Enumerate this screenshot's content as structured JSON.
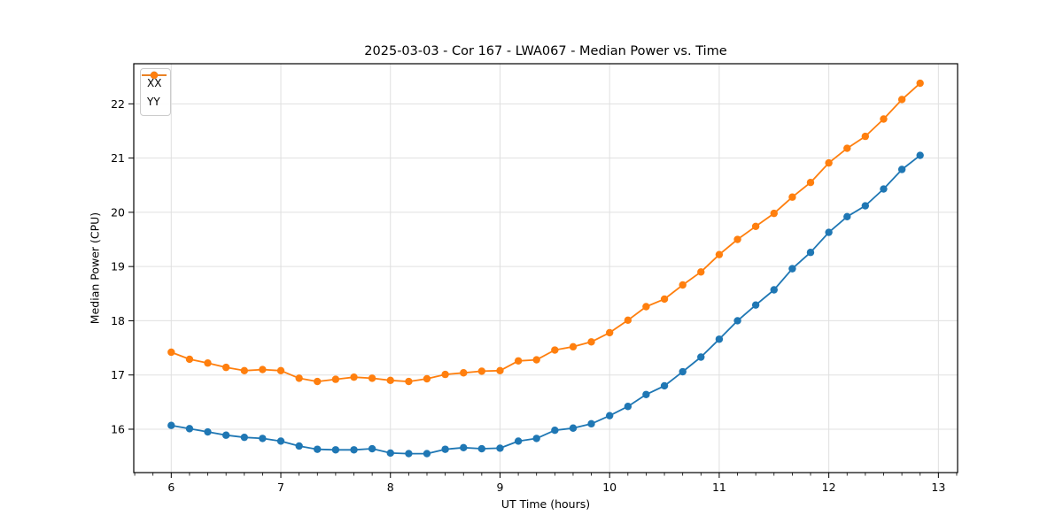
{
  "chart_data": {
    "type": "line",
    "title": "2025-03-03 - Cor 167 - LWA067 - Median Power vs. Time",
    "xlabel": "UT Time (hours)",
    "ylabel": "Median Power (CPU)",
    "xlim": [
      5.658,
      13.175
    ],
    "ylim": [
      15.2,
      22.74
    ],
    "xticks": [
      6,
      7,
      8,
      9,
      10,
      11,
      12,
      13
    ],
    "yticks": [
      16,
      17,
      18,
      19,
      20,
      21,
      22
    ],
    "x_minor_step": 0.166667,
    "grid": true,
    "legend_position": "upper-left",
    "x": [
      6.0,
      6.167,
      6.333,
      6.5,
      6.667,
      6.833,
      7.0,
      7.167,
      7.333,
      7.5,
      7.667,
      7.833,
      8.0,
      8.167,
      8.333,
      8.5,
      8.667,
      8.833,
      9.0,
      9.167,
      9.333,
      9.5,
      9.667,
      9.833,
      10.0,
      10.167,
      10.333,
      10.5,
      10.667,
      10.833,
      11.0,
      11.167,
      11.333,
      11.5,
      11.667,
      11.833,
      12.0,
      12.167,
      12.333,
      12.5,
      12.667,
      12.833
    ],
    "series": [
      {
        "name": "XX",
        "color": "#1f77b4",
        "values": [
          16.07,
          16.01,
          15.95,
          15.89,
          15.85,
          15.83,
          15.78,
          15.69,
          15.63,
          15.62,
          15.62,
          15.64,
          15.56,
          15.55,
          15.55,
          15.63,
          15.66,
          15.64,
          15.65,
          15.78,
          15.83,
          15.98,
          16.02,
          16.1,
          16.25,
          16.42,
          16.64,
          16.8,
          17.06,
          17.33,
          17.66,
          18.0,
          18.29,
          18.57,
          18.96,
          19.26,
          19.63,
          19.92,
          20.12,
          20.43,
          20.79,
          21.05
        ]
      },
      {
        "name": "YY",
        "color": "#ff7f0e",
        "values": [
          17.42,
          17.29,
          17.22,
          17.14,
          17.08,
          17.1,
          17.08,
          16.94,
          16.88,
          16.92,
          16.96,
          16.94,
          16.9,
          16.88,
          16.93,
          17.01,
          17.04,
          17.07,
          17.08,
          17.26,
          17.28,
          17.46,
          17.52,
          17.61,
          17.78,
          18.01,
          18.26,
          18.4,
          18.66,
          18.9,
          19.22,
          19.5,
          19.74,
          19.98,
          20.28,
          20.55,
          20.91,
          21.18,
          21.4,
          21.72,
          22.08,
          22.38
        ]
      }
    ]
  },
  "colors": {
    "background": "#ffffff",
    "grid": "#e0e0e0",
    "axis": "#000000",
    "tick_label": "#000000"
  }
}
